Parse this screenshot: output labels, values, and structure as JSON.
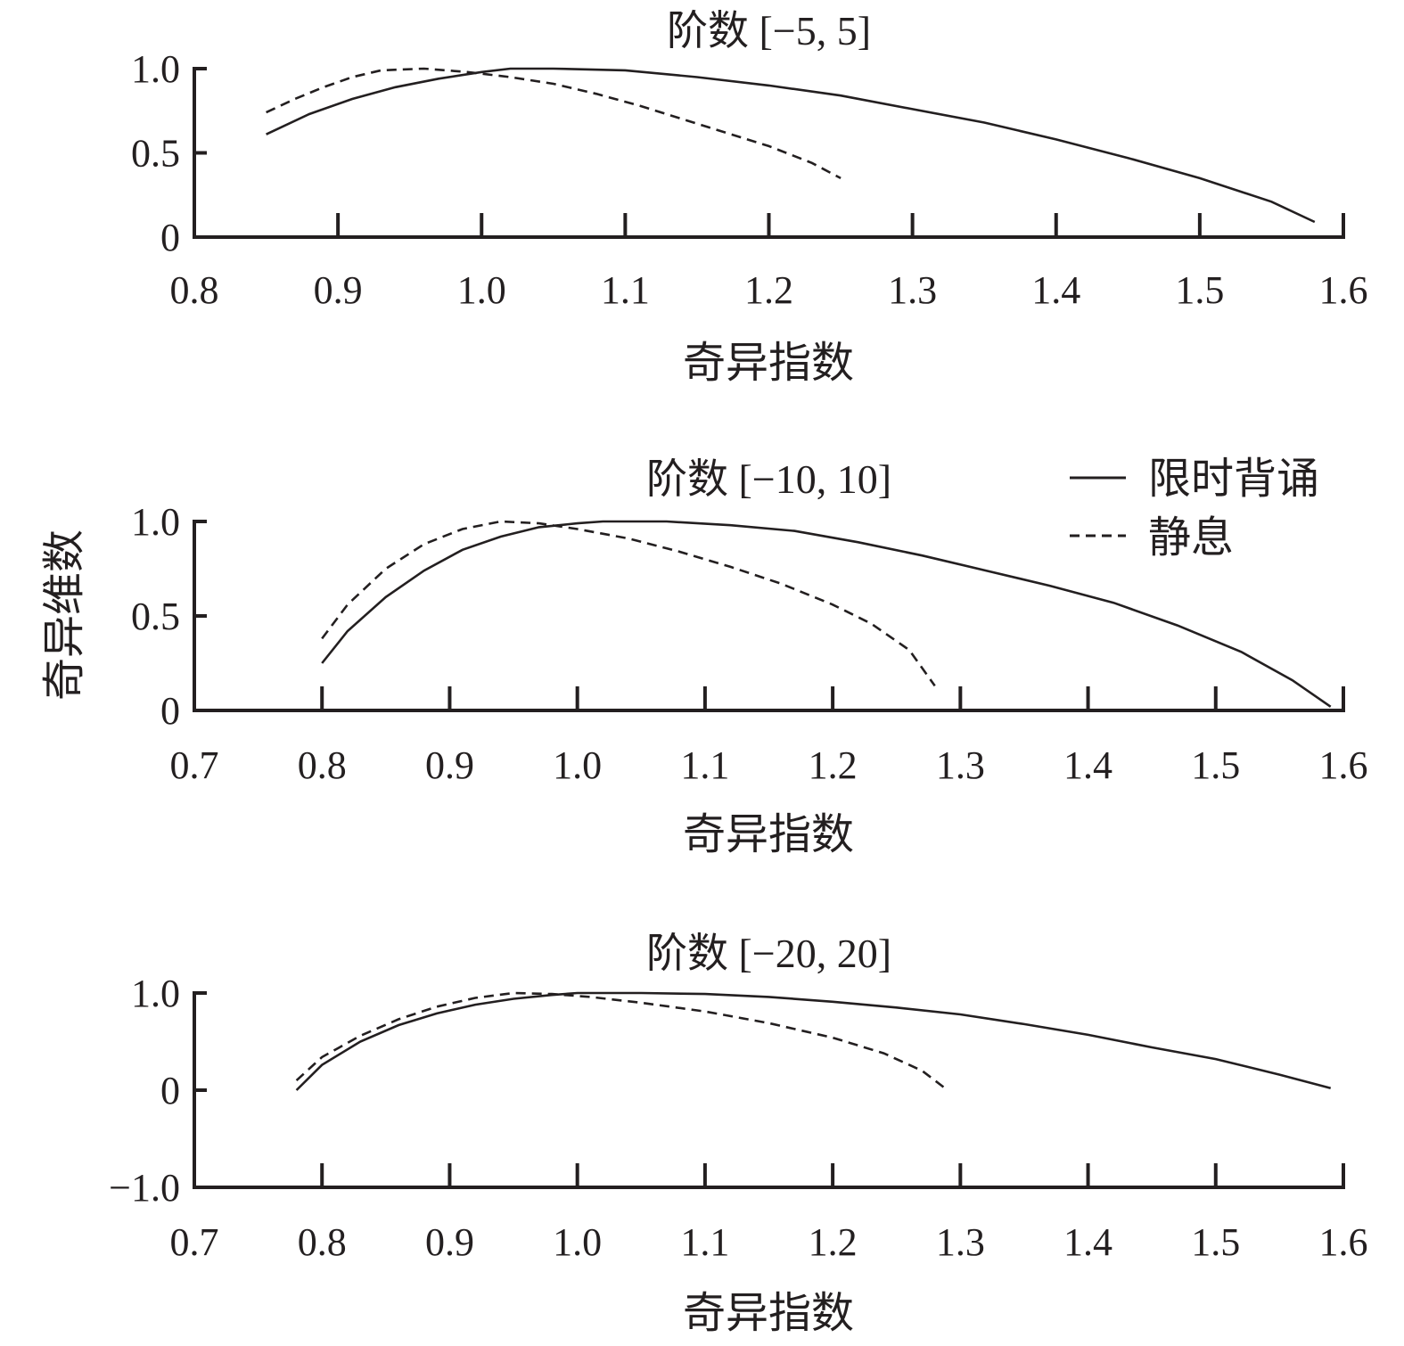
{
  "ylabel": "奇异维数",
  "legend": {
    "items": [
      {
        "label": "限时背诵",
        "style": "solid"
      },
      {
        "label": "静息",
        "style": "dashed"
      }
    ]
  },
  "chart_data": [
    {
      "type": "line",
      "title": "阶数 [−5, 5]",
      "xlabel": "奇异指数",
      "ylabel": "奇异维数",
      "xlim": [
        0.8,
        1.6
      ],
      "ylim": [
        0,
        1.0
      ],
      "xticks": [
        0.8,
        0.9,
        1.0,
        1.1,
        1.2,
        1.3,
        1.4,
        1.5,
        1.6
      ],
      "xticklabels": [
        "0.8",
        "0.9",
        "1.0",
        "1.1",
        "1.2",
        "1.3",
        "1.4",
        "1.5",
        "1.6"
      ],
      "yticks": [
        0,
        0.5,
        1.0
      ],
      "yticklabels": [
        "0",
        "0.5",
        "1.0"
      ],
      "series": [
        {
          "name": "限时背诵",
          "style": "solid",
          "x": [
            0.85,
            0.88,
            0.91,
            0.94,
            0.97,
            1.0,
            1.02,
            1.05,
            1.1,
            1.15,
            1.2,
            1.25,
            1.3,
            1.35,
            1.4,
            1.45,
            1.5,
            1.55,
            1.58
          ],
          "y": [
            0.61,
            0.73,
            0.82,
            0.89,
            0.94,
            0.98,
            1.0,
            1.0,
            0.99,
            0.95,
            0.9,
            0.84,
            0.76,
            0.68,
            0.58,
            0.47,
            0.35,
            0.21,
            0.09
          ]
        },
        {
          "name": "静息",
          "style": "dashed",
          "x": [
            0.85,
            0.87,
            0.89,
            0.91,
            0.93,
            0.96,
            0.99,
            1.02,
            1.05,
            1.08,
            1.11,
            1.14,
            1.17,
            1.2,
            1.23,
            1.25
          ],
          "y": [
            0.74,
            0.82,
            0.89,
            0.95,
            0.99,
            1.0,
            0.98,
            0.95,
            0.91,
            0.85,
            0.78,
            0.7,
            0.62,
            0.54,
            0.44,
            0.35
          ]
        }
      ]
    },
    {
      "type": "line",
      "title": "阶数 [−10, 10]",
      "xlabel": "奇异指数",
      "ylabel": "奇异维数",
      "xlim": [
        0.7,
        1.6
      ],
      "ylim": [
        0,
        1.0
      ],
      "xticks": [
        0.7,
        0.8,
        0.9,
        1.0,
        1.1,
        1.2,
        1.3,
        1.4,
        1.5,
        1.6
      ],
      "xticklabels": [
        "0.7",
        "0.8",
        "0.9",
        "1.0",
        "1.1",
        "1.2",
        "1.3",
        "1.4",
        "1.5",
        "1.6"
      ],
      "yticks": [
        0,
        0.5,
        1.0
      ],
      "yticklabels": [
        "0",
        "0.5",
        "1.0"
      ],
      "series": [
        {
          "name": "限时背诵",
          "style": "solid",
          "x": [
            0.8,
            0.82,
            0.85,
            0.88,
            0.91,
            0.94,
            0.97,
            1.0,
            1.02,
            1.07,
            1.12,
            1.17,
            1.22,
            1.27,
            1.32,
            1.37,
            1.42,
            1.47,
            1.52,
            1.56,
            1.59
          ],
          "y": [
            0.25,
            0.42,
            0.6,
            0.74,
            0.85,
            0.92,
            0.97,
            0.99,
            1.0,
            1.0,
            0.98,
            0.95,
            0.89,
            0.82,
            0.74,
            0.66,
            0.57,
            0.45,
            0.31,
            0.16,
            0.02
          ]
        },
        {
          "name": "静息",
          "style": "dashed",
          "x": [
            0.8,
            0.82,
            0.85,
            0.88,
            0.91,
            0.94,
            0.97,
            1.0,
            1.04,
            1.08,
            1.12,
            1.16,
            1.2,
            1.23,
            1.26,
            1.28
          ],
          "y": [
            0.38,
            0.56,
            0.75,
            0.88,
            0.96,
            1.0,
            0.99,
            0.96,
            0.91,
            0.84,
            0.76,
            0.67,
            0.56,
            0.46,
            0.32,
            0.13
          ]
        }
      ]
    },
    {
      "type": "line",
      "title": "阶数 [−20, 20]",
      "xlabel": "奇异指数",
      "ylabel": "奇异维数",
      "xlim": [
        0.7,
        1.6
      ],
      "ylim": [
        -1.0,
        1.0
      ],
      "xticks": [
        0.7,
        0.8,
        0.9,
        1.0,
        1.1,
        1.2,
        1.3,
        1.4,
        1.5,
        1.6
      ],
      "xticklabels": [
        "0.7",
        "0.8",
        "0.9",
        "1.0",
        "1.1",
        "1.2",
        "1.3",
        "1.4",
        "1.5",
        "1.6"
      ],
      "yticks": [
        -1.0,
        0,
        1.0
      ],
      "yticklabels": [
        "−1.0",
        "0",
        "1.0"
      ],
      "series": [
        {
          "name": "限时背诵",
          "style": "solid",
          "x": [
            0.78,
            0.8,
            0.83,
            0.86,
            0.89,
            0.92,
            0.95,
            0.98,
            1.0,
            1.05,
            1.1,
            1.15,
            1.2,
            1.25,
            1.3,
            1.35,
            1.4,
            1.45,
            1.5,
            1.55,
            1.59
          ],
          "y": [
            0.0,
            0.26,
            0.5,
            0.67,
            0.79,
            0.88,
            0.94,
            0.98,
            1.0,
            1.0,
            0.99,
            0.96,
            0.91,
            0.85,
            0.78,
            0.68,
            0.57,
            0.44,
            0.32,
            0.16,
            0.02
          ]
        },
        {
          "name": "静息",
          "style": "dashed",
          "x": [
            0.78,
            0.8,
            0.83,
            0.86,
            0.89,
            0.92,
            0.95,
            0.98,
            1.01,
            1.05,
            1.1,
            1.15,
            1.2,
            1.24,
            1.27,
            1.29
          ],
          "y": [
            0.1,
            0.34,
            0.56,
            0.73,
            0.86,
            0.95,
            1.0,
            0.99,
            0.96,
            0.9,
            0.81,
            0.69,
            0.54,
            0.38,
            0.2,
            0.0
          ]
        }
      ]
    }
  ]
}
